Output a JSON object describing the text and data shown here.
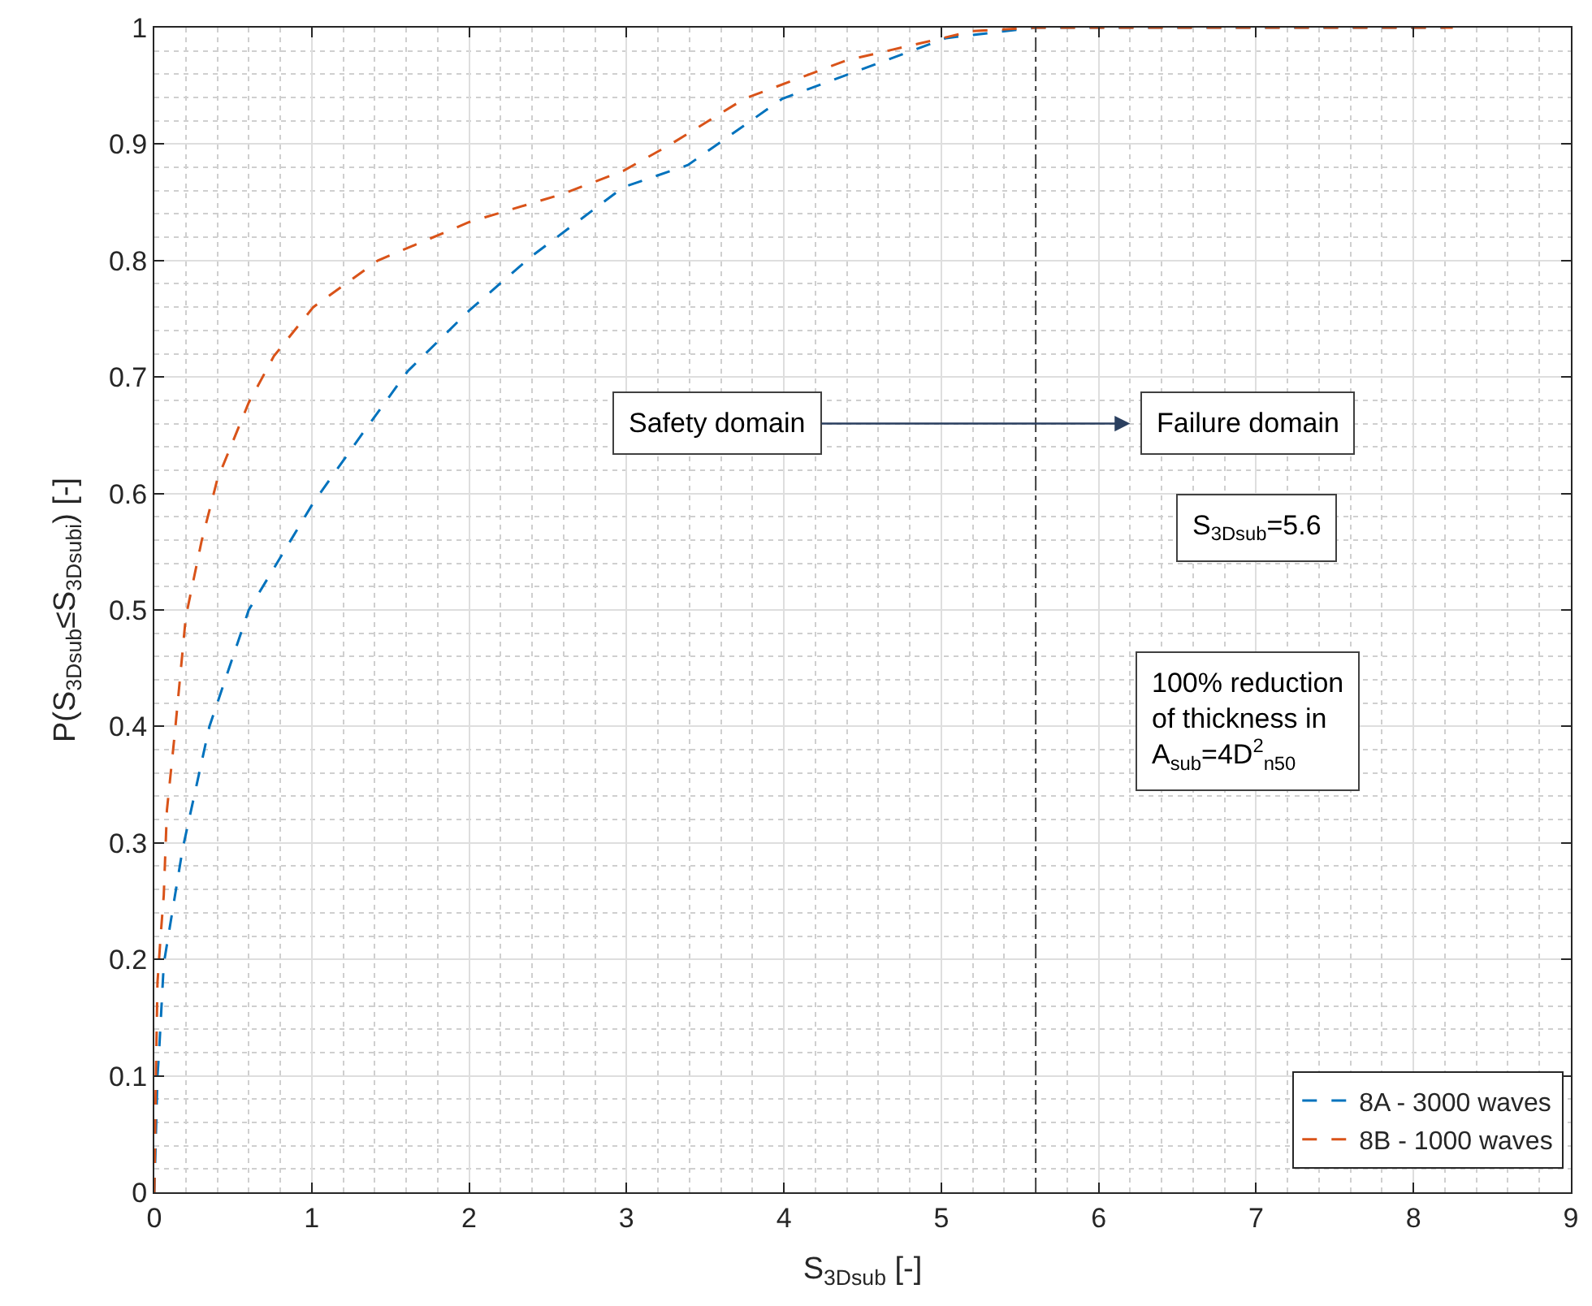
{
  "chart_data": {
    "type": "line",
    "xlabel": "S$_{3Dsub}$ [-]",
    "ylabel": "P(S$_{3Dsub}$≤S$_{3Dsub}$$_{i}$) [-]",
    "series": [
      {
        "name": "8A - 3000 waves",
        "color": "#0072bd",
        "x": [
          0,
          0.01,
          0.02,
          0.03,
          0.06,
          0.18,
          0.35,
          0.6,
          1.01,
          1.32,
          1.61,
          2.0,
          2.39,
          2.98,
          3.39,
          3.99,
          5.03,
          5.6,
          8.2
        ],
        "values": [
          0,
          0.05,
          0.1,
          0.12,
          0.196,
          0.295,
          0.4,
          0.5,
          0.592,
          0.651,
          0.705,
          0.757,
          0.803,
          0.863,
          0.882,
          0.939,
          0.991,
          1,
          1
        ]
      },
      {
        "name": "8B - 1000 waves",
        "color": "#d95319",
        "x": [
          0,
          0.01,
          0.02,
          0.04,
          0.06,
          0.08,
          0.13,
          0.2,
          0.3,
          0.4,
          0.6,
          0.76,
          1.01,
          1.42,
          2.0,
          2.59,
          2.98,
          3.27,
          3.75,
          4.4,
          5.2,
          5.6,
          8.25
        ],
        "values": [
          0,
          0.1,
          0.18,
          0.22,
          0.255,
          0.328,
          0.394,
          0.494,
          0.559,
          0.612,
          0.678,
          0.718,
          0.76,
          0.8,
          0.833,
          0.857,
          0.877,
          0.899,
          0.939,
          0.972,
          0.997,
          1,
          1
        ]
      }
    ],
    "line_style": "dashed",
    "marker": "none",
    "xlim": [
      0,
      9
    ],
    "xticks": [
      0,
      1,
      2,
      3,
      4,
      5,
      6,
      7,
      8,
      9
    ],
    "ylim": [
      0,
      1
    ],
    "yticks": [
      0,
      0.1,
      0.2,
      0.3,
      0.4,
      0.5,
      0.6,
      0.7,
      0.8,
      0.9,
      1
    ],
    "grid": true,
    "legend": "bottom right",
    "ref_lines": [
      {
        "axis": "x",
        "value": 5.6,
        "color": "#404040",
        "line_style": "dashdot"
      }
    ],
    "annotations": [
      "Safety domain",
      "Failure domain",
      "S$_{3Dsub}$=5.6",
      "100% reduction\nof thickness in\nA$_{sub}$=4D$^{2}$$_{n50}$"
    ]
  }
}
